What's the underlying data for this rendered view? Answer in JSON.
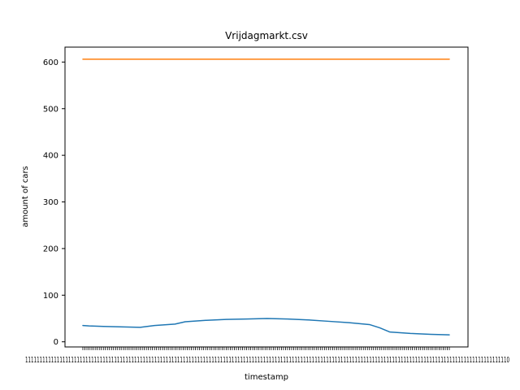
{
  "chart_data": {
    "type": "line",
    "title": "Vrijdagmarkt.csv",
    "xlabel": "timestamp",
    "ylabel": "amount of cars",
    "ylim": [
      -11,
      632
    ],
    "yticks": [
      0,
      100,
      200,
      300,
      400,
      500,
      600
    ],
    "grid": false,
    "legend": "none",
    "x_count": 180,
    "x_tick_label_run": "1111111111111111111111111111111111111111111111111111111111111111111111111111111111111111111111111111111111111111111111111111111111111111111111111111111111111111111111110",
    "series": [
      {
        "color": "#1f77b4",
        "points": [
          [
            0,
            35
          ],
          [
            3,
            34
          ],
          [
            10,
            33
          ],
          [
            20,
            32
          ],
          [
            28,
            31
          ],
          [
            35,
            35
          ],
          [
            45,
            38
          ],
          [
            50,
            43
          ],
          [
            60,
            46
          ],
          [
            70,
            48
          ],
          [
            80,
            49
          ],
          [
            90,
            50
          ],
          [
            100,
            49
          ],
          [
            110,
            47
          ],
          [
            120,
            44
          ],
          [
            130,
            41
          ],
          [
            140,
            37
          ],
          [
            145,
            30
          ],
          [
            150,
            21
          ],
          [
            160,
            18
          ],
          [
            170,
            16
          ],
          [
            179,
            15
          ]
        ]
      },
      {
        "color": "#ff7f0e",
        "points": [
          [
            0,
            606
          ],
          [
            179,
            606
          ]
        ]
      }
    ]
  }
}
